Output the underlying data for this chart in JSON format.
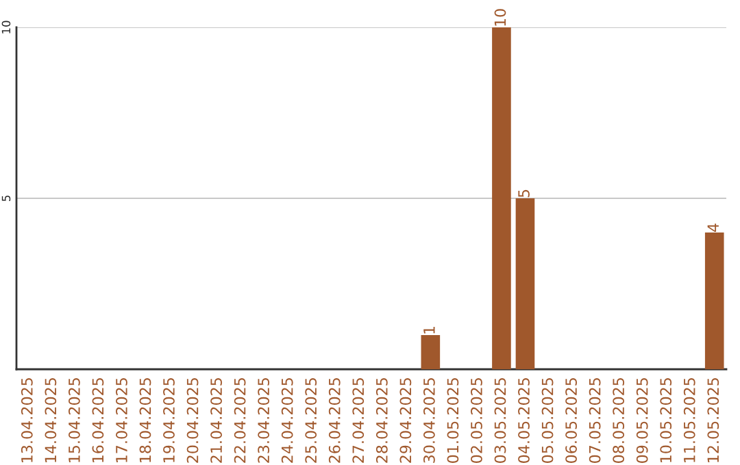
{
  "chart_data": {
    "type": "bar",
    "categories": [
      "13.04.2025",
      "14.04.2025",
      "15.04.2025",
      "16.04.2025",
      "17.04.2025",
      "18.04.2025",
      "19.04.2025",
      "20.04.2025",
      "21.04.2025",
      "22.04.2025",
      "23.04.2025",
      "24.04.2025",
      "25.04.2025",
      "26.04.2025",
      "27.04.2025",
      "28.04.2025",
      "29.04.2025",
      "30.04.2025",
      "01.05.2025",
      "02.05.2025",
      "03.05.2025",
      "04.05.2025",
      "05.05.2025",
      "06.05.2025",
      "07.05.2025",
      "08.05.2025",
      "09.05.2025",
      "10.05.2025",
      "11.05.2025",
      "12.05.2025"
    ],
    "values": [
      0,
      0,
      0,
      0,
      0,
      0,
      0,
      0,
      0,
      0,
      0,
      0,
      0,
      0,
      0,
      0,
      0,
      1,
      0,
      0,
      10,
      5,
      0,
      0,
      0,
      0,
      0,
      0,
      0,
      4
    ],
    "value_labels": [
      null,
      null,
      null,
      null,
      null,
      null,
      null,
      null,
      null,
      null,
      null,
      null,
      null,
      null,
      null,
      null,
      null,
      "1",
      null,
      null,
      "10",
      "5",
      null,
      null,
      null,
      null,
      null,
      null,
      null,
      "4"
    ],
    "color": "#a0582c",
    "ylim": [
      0,
      10
    ],
    "yticks": [
      5,
      10
    ],
    "grid": "y"
  }
}
